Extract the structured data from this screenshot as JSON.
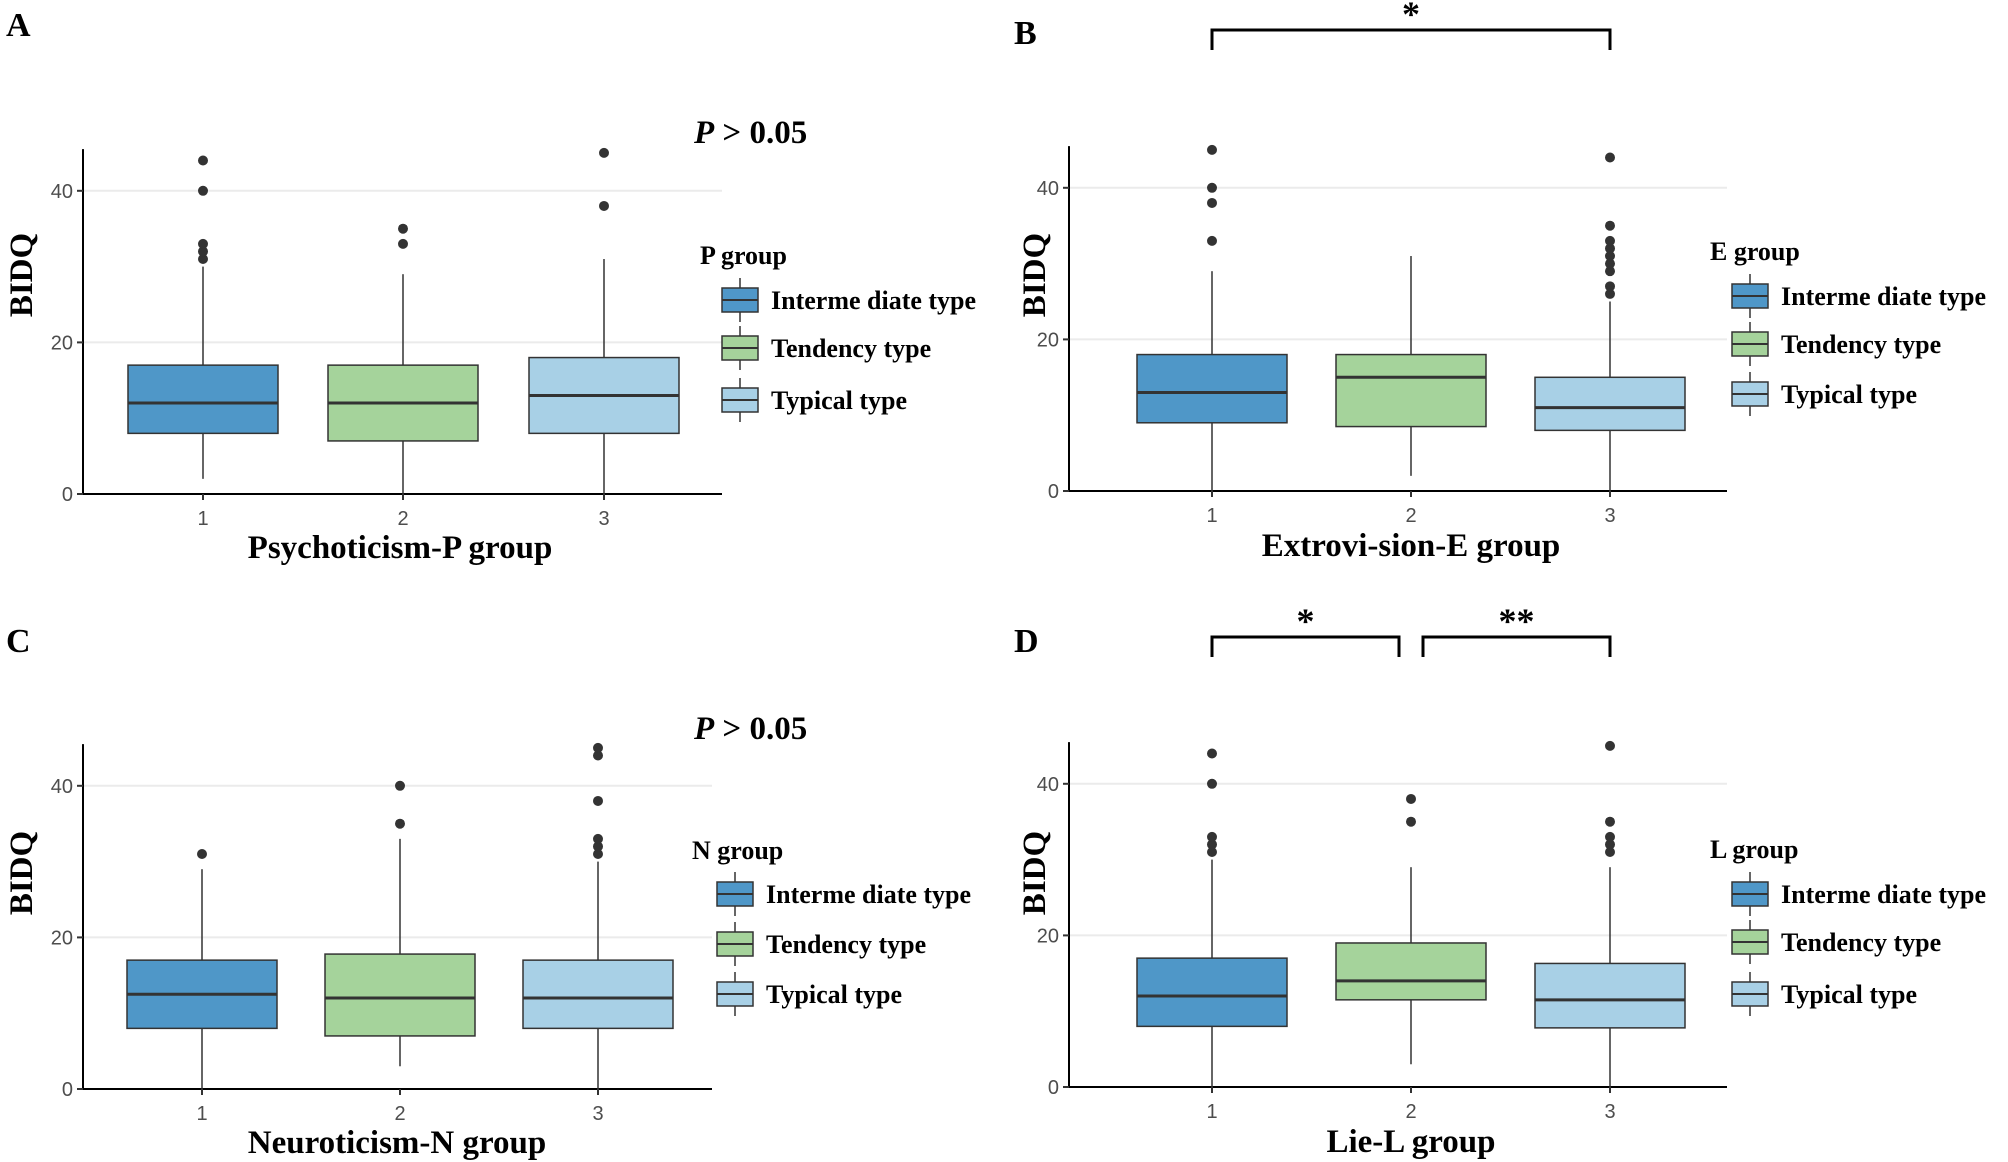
{
  "colors": {
    "intermediate": "#4f97c8",
    "tendency": "#a5d39b",
    "typical": "#a8d0e6",
    "grid": "#ebebeb",
    "axis": "#000000",
    "outlier": "#333333",
    "median": "#333333"
  },
  "legend_labels": [
    "Interme diate type",
    "Tendency type",
    "Typical type"
  ],
  "chart_data": [
    {
      "panel": "A",
      "type": "box",
      "xlabel": "Psychoticism-P group",
      "ylabel": "BIDQ",
      "legend_title": "P group",
      "annotation": "P > 0.05",
      "categories": [
        "1",
        "2",
        "3"
      ],
      "ylim": [
        0,
        45.5
      ],
      "yticks": [
        0,
        20,
        40
      ],
      "series": [
        {
          "name": "Interme diate type",
          "min": 2,
          "q1": 8,
          "median": 12,
          "q3": 17,
          "max": 30,
          "outliers": [
            31,
            32,
            33,
            40,
            44
          ]
        },
        {
          "name": "Tendency type",
          "min": 0,
          "q1": 7,
          "median": 12,
          "q3": 17,
          "max": 29,
          "outliers": [
            33,
            35
          ]
        },
        {
          "name": "Typical type",
          "min": 0,
          "q1": 8,
          "median": 13,
          "q3": 18,
          "max": 31,
          "outliers": [
            38,
            45
          ]
        }
      ],
      "significance": []
    },
    {
      "panel": "B",
      "type": "box",
      "xlabel": "Extrovi-sion-E group",
      "ylabel": "BIDQ",
      "legend_title": "E group",
      "annotation": "",
      "categories": [
        "1",
        "2",
        "3"
      ],
      "ylim": [
        0,
        45.5
      ],
      "yticks": [
        0,
        20,
        40
      ],
      "series": [
        {
          "name": "Interme diate type",
          "min": 0,
          "q1": 9,
          "median": 13,
          "q3": 18,
          "max": 29,
          "outliers": [
            33,
            38,
            40,
            45
          ]
        },
        {
          "name": "Tendency type",
          "min": 2,
          "q1": 8.5,
          "median": 15,
          "q3": 18,
          "max": 31,
          "outliers": []
        },
        {
          "name": "Typical type",
          "min": 0,
          "q1": 8,
          "median": 11,
          "q3": 15,
          "max": 25,
          "outliers": [
            26,
            27,
            29,
            30,
            31,
            32,
            33,
            35,
            44
          ]
        }
      ],
      "significance": [
        {
          "from": 1,
          "to": 3,
          "label": "*"
        }
      ]
    },
    {
      "panel": "C",
      "type": "box",
      "xlabel": "Neuroticism-N group",
      "ylabel": "BIDQ",
      "legend_title": "N group",
      "annotation": "P > 0.05",
      "categories": [
        "1",
        "2",
        "3"
      ],
      "ylim": [
        0,
        45.5
      ],
      "yticks": [
        0,
        20,
        40
      ],
      "series": [
        {
          "name": "Interme diate type",
          "min": 0,
          "q1": 8,
          "median": 12.5,
          "q3": 17,
          "max": 29,
          "outliers": [
            31
          ]
        },
        {
          "name": "Tendency type",
          "min": 3,
          "q1": 7,
          "median": 12,
          "q3": 17.8,
          "max": 33,
          "outliers": [
            35,
            40
          ]
        },
        {
          "name": "Typical type",
          "min": 0,
          "q1": 8,
          "median": 12,
          "q3": 17,
          "max": 30,
          "outliers": [
            31,
            32,
            33,
            38,
            44,
            45
          ]
        }
      ],
      "significance": []
    },
    {
      "panel": "D",
      "type": "box",
      "xlabel": "Lie-L group",
      "ylabel": "BIDQ",
      "legend_title": "L group",
      "annotation": "",
      "categories": [
        "1",
        "2",
        "3"
      ],
      "ylim": [
        0,
        45.5
      ],
      "yticks": [
        0,
        20,
        40
      ],
      "series": [
        {
          "name": "Interme diate type",
          "min": 0,
          "q1": 8,
          "median": 12,
          "q3": 17,
          "max": 30,
          "outliers": [
            31,
            32,
            33,
            40,
            44
          ]
        },
        {
          "name": "Tendency type",
          "min": 3,
          "q1": 11.5,
          "median": 14,
          "q3": 19,
          "max": 29,
          "outliers": [
            35,
            38
          ]
        },
        {
          "name": "Typical type",
          "min": 0,
          "q1": 7.8,
          "median": 11.5,
          "q3": 16.3,
          "max": 29,
          "outliers": [
            31,
            32,
            33,
            35,
            45
          ]
        }
      ],
      "significance": [
        {
          "from": 1,
          "to": 2,
          "label": "*"
        },
        {
          "from": 2,
          "to": 3,
          "label": "**"
        }
      ]
    }
  ]
}
